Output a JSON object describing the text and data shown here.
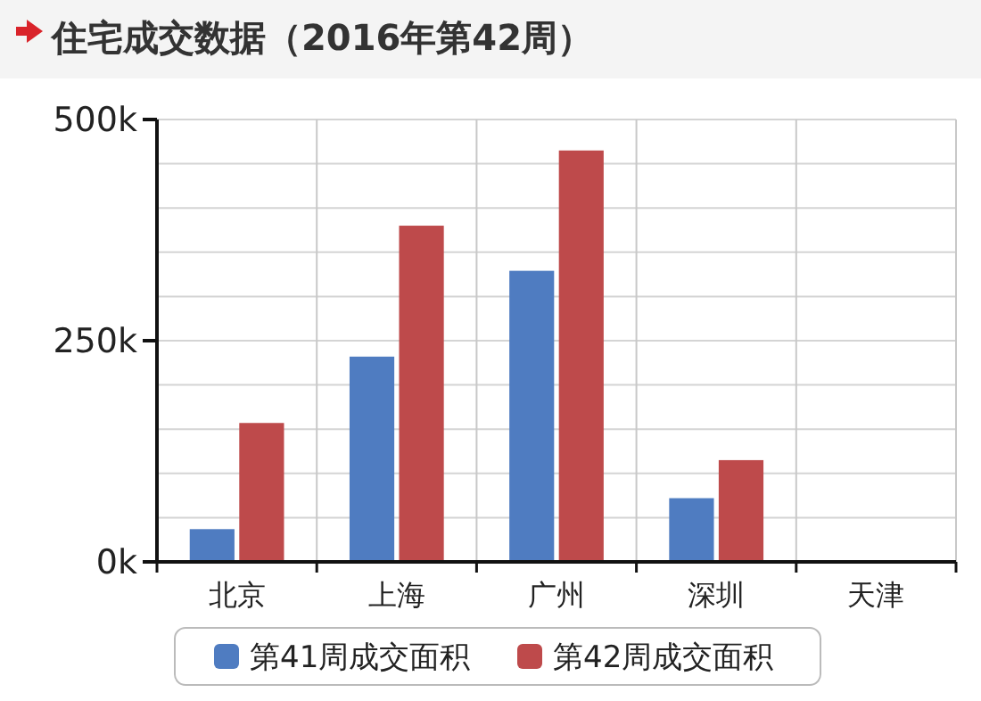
{
  "chart_data": {
    "type": "bar",
    "title": "住宅成交数据（2016年第42周）",
    "categories": [
      "北京",
      "上海",
      "广州",
      "深圳",
      "天津"
    ],
    "series": [
      {
        "name": "第41周成交面积",
        "color": "#4f7cc1",
        "values": [
          37000,
          232000,
          329000,
          72000,
          null
        ]
      },
      {
        "name": "第42周成交面积",
        "color": "#be4a4b",
        "values": [
          157000,
          380000,
          465000,
          115000,
          null
        ]
      }
    ],
    "ylim": [
      0,
      500000
    ],
    "yticks": [
      {
        "value": 0,
        "label": "0k"
      },
      {
        "value": 50000,
        "label": null
      },
      {
        "value": 100000,
        "label": null
      },
      {
        "value": 150000,
        "label": null
      },
      {
        "value": 200000,
        "label": null
      },
      {
        "value": 250000,
        "label": "250k"
      },
      {
        "value": 300000,
        "label": null
      },
      {
        "value": 350000,
        "label": null
      },
      {
        "value": 400000,
        "label": null
      },
      {
        "value": 450000,
        "label": null
      },
      {
        "value": 500000,
        "label": "500k"
      }
    ],
    "grid": true,
    "legend": "bottom"
  }
}
